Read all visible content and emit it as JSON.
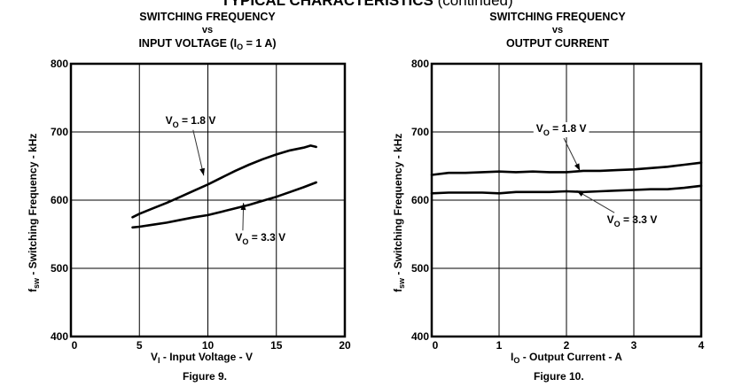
{
  "page": {
    "header_bold": "TYPICAL CHARACTERISTICS",
    "header_normal": "(continued)"
  },
  "chart_data": [
    {
      "type": "line",
      "title_line1": "SWITCHING FREQUENCY",
      "title_line2": "vs",
      "title_line3_main": "INPUT VOLTAGE (I",
      "title_line3_sub": "O",
      "title_line3_end": " = 1 A)",
      "xlabel_main": "V",
      "xlabel_sub": "I",
      "xlabel_rest": " - Input Voltage - V",
      "ylabel_main": "f",
      "ylabel_sub": "sw",
      "ylabel_rest": " - Switching Frequency - kHz",
      "caption": "Figure 9.",
      "xlim": [
        0,
        20
      ],
      "ylim": [
        400,
        800
      ],
      "xticks": [
        "0",
        "5",
        "10",
        "15",
        "20"
      ],
      "xtick_values": [
        0,
        5,
        10,
        15,
        20
      ],
      "yticks": [
        "400",
        "500",
        "600",
        "700",
        "800"
      ],
      "ytick_values": [
        400,
        500,
        600,
        700,
        800
      ],
      "grid": true,
      "series": [
        {
          "name": "VO = 1.8 V",
          "label_main": "V",
          "label_sub": "O",
          "label_rest": " = 1.8 V",
          "x": [
            4.5,
            5,
            6,
            7,
            8,
            9,
            10,
            11,
            12,
            13,
            14,
            15,
            16,
            17,
            17.5,
            17.9
          ],
          "y": [
            575,
            580,
            588,
            596,
            605,
            614,
            623,
            633,
            643,
            652,
            660,
            667,
            673,
            677,
            680,
            678
          ]
        },
        {
          "name": "VO = 3.3 V",
          "label_main": "V",
          "label_sub": "O",
          "label_rest": " = 3.3 V",
          "x": [
            4.5,
            5,
            6,
            7,
            8,
            9,
            10,
            11,
            12,
            13,
            14,
            15,
            16,
            17,
            17.9
          ],
          "y": [
            560,
            561,
            564,
            567,
            571,
            575,
            578,
            583,
            588,
            593,
            599,
            605,
            612,
            619,
            626
          ]
        }
      ]
    },
    {
      "type": "line",
      "title_line1": "SWITCHING FREQUENCY",
      "title_line2": "vs",
      "title_line3_main": "OUTPUT CURRENT",
      "title_line3_sub": "",
      "title_line3_end": "",
      "xlabel_main": "I",
      "xlabel_sub": "O",
      "xlabel_rest": " - Output Current - A",
      "ylabel_main": "f",
      "ylabel_sub": "sw",
      "ylabel_rest": " - Switching Frequency - kHz",
      "caption": "Figure 10.",
      "xlim": [
        0,
        4
      ],
      "ylim": [
        400,
        800
      ],
      "xticks": [
        "0",
        "1",
        "2",
        "3",
        "4"
      ],
      "xtick_values": [
        0,
        1,
        2,
        3,
        4
      ],
      "yticks": [
        "400",
        "500",
        "600",
        "700",
        "800"
      ],
      "ytick_values": [
        400,
        500,
        600,
        700,
        800
      ],
      "grid": true,
      "series": [
        {
          "name": "VO = 1.8 V",
          "label_main": "V",
          "label_sub": "O",
          "label_rest": " = 1.8 V",
          "x": [
            0,
            0.25,
            0.5,
            0.75,
            1,
            1.25,
            1.5,
            1.75,
            2,
            2.25,
            2.5,
            2.75,
            3,
            3.25,
            3.5,
            3.75,
            4
          ],
          "y": [
            637,
            640,
            640,
            641,
            642,
            641,
            642,
            641,
            641,
            643,
            643,
            644,
            645,
            647,
            649,
            652,
            655
          ]
        },
        {
          "name": "VO = 3.3 V",
          "label_main": "V",
          "label_sub": "O",
          "label_rest": " = 3.3 V",
          "x": [
            0,
            0.25,
            0.5,
            0.75,
            1,
            1.25,
            1.5,
            1.75,
            2,
            2.25,
            2.5,
            2.75,
            3,
            3.25,
            3.5,
            3.75,
            4
          ],
          "y": [
            610,
            611,
            611,
            611,
            610,
            612,
            612,
            612,
            613,
            612,
            613,
            614,
            615,
            616,
            616,
            618,
            621
          ]
        }
      ]
    }
  ]
}
